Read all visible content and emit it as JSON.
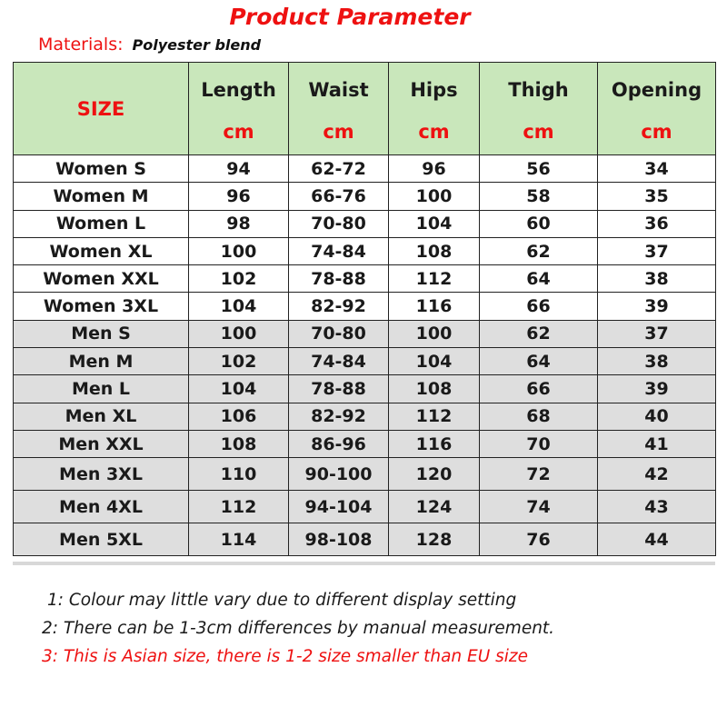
{
  "title": "Product Parameter",
  "materials": {
    "label": "Materials:",
    "value": "Polyester blend"
  },
  "table": {
    "size_header": "SIZE",
    "columns": [
      {
        "name": "Length",
        "unit": "cm"
      },
      {
        "name": "Waist",
        "unit": "cm"
      },
      {
        "name": "Hips",
        "unit": "cm"
      },
      {
        "name": "Thigh",
        "unit": "cm"
      },
      {
        "name": "Opening",
        "unit": "cm"
      }
    ],
    "rows": [
      {
        "group": "women",
        "size": "Women S",
        "values": [
          "94",
          "62-72",
          "96",
          "56",
          "34"
        ]
      },
      {
        "group": "women",
        "size": "Women M",
        "values": [
          "96",
          "66-76",
          "100",
          "58",
          "35"
        ]
      },
      {
        "group": "women",
        "size": "Women L",
        "values": [
          "98",
          "70-80",
          "104",
          "60",
          "36"
        ]
      },
      {
        "group": "women",
        "size": "Women XL",
        "values": [
          "100",
          "74-84",
          "108",
          "62",
          "37"
        ]
      },
      {
        "group": "women",
        "size": "Women XXL",
        "values": [
          "102",
          "78-88",
          "112",
          "64",
          "38"
        ]
      },
      {
        "group": "women",
        "size": "Women 3XL",
        "values": [
          "104",
          "82-92",
          "116",
          "66",
          "39"
        ]
      },
      {
        "group": "men",
        "size": "Men S",
        "values": [
          "100",
          "70-80",
          "100",
          "62",
          "37"
        ]
      },
      {
        "group": "men",
        "size": "Men M",
        "values": [
          "102",
          "74-84",
          "104",
          "64",
          "38"
        ]
      },
      {
        "group": "men",
        "size": "Men L",
        "values": [
          "104",
          "78-88",
          "108",
          "66",
          "39"
        ]
      },
      {
        "group": "men",
        "size": "Men XL",
        "values": [
          "106",
          "82-92",
          "112",
          "68",
          "40"
        ]
      },
      {
        "group": "men",
        "size": "Men XXL",
        "values": [
          "108",
          "86-96",
          "116",
          "70",
          "41"
        ]
      },
      {
        "group": "men",
        "size": "Men 3XL",
        "values": [
          "110",
          "90-100",
          "120",
          "72",
          "42"
        ]
      },
      {
        "group": "men",
        "size": "Men 4XL",
        "values": [
          "112",
          "94-104",
          "124",
          "74",
          "43"
        ]
      },
      {
        "group": "men",
        "size": "Men 5XL",
        "values": [
          "114",
          "98-108",
          "128",
          "76",
          "44"
        ]
      }
    ]
  },
  "notes": [
    "1: Colour may little vary due to different display setting",
    "2: There can be 1-3cm differences by manual measurement.",
    "3: This is Asian size, there is 1-2 size smaller than EU size"
  ],
  "colors": {
    "accent_red": "#ee1111",
    "header_green": "#c9e7bb",
    "men_row_gray": "#dedede",
    "women_row_white": "#ffffff"
  }
}
